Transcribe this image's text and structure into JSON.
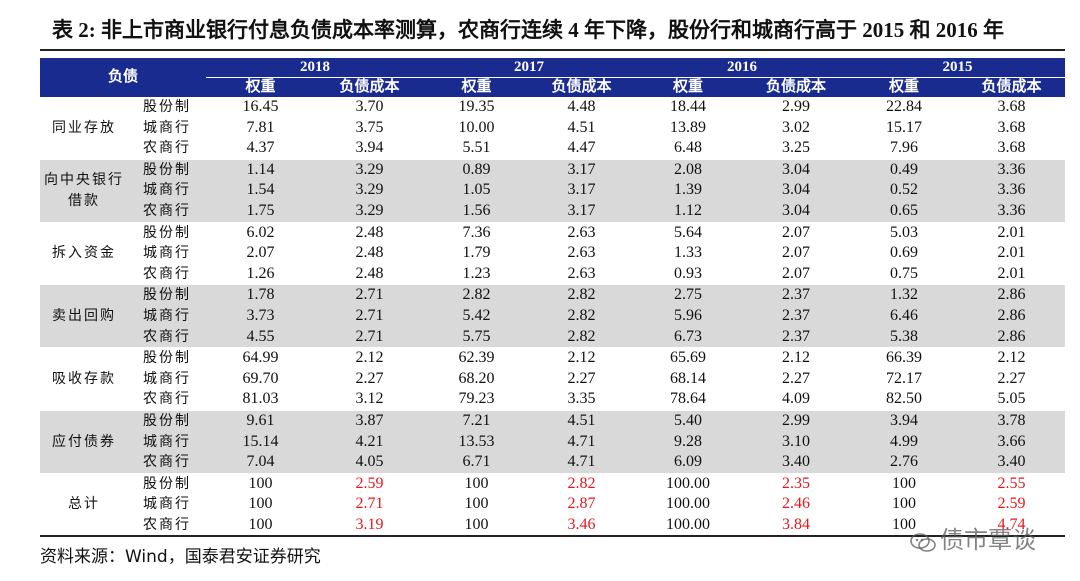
{
  "title": "表 2:  非上市商业银行付息负债成本率测算，农商行连续 4 年下降，股份行和城商行高于 2015 和 2016 年",
  "header": {
    "corner": "负债",
    "years": [
      "2018",
      "2017",
      "2016",
      "2015"
    ],
    "sub_weight": "权重",
    "sub_cost": "负债成本"
  },
  "groups": [
    {
      "name_lines": [
        "同业存放"
      ],
      "shaded": false,
      "rows": [
        {
          "type": "股份制",
          "cells": [
            "16.45",
            "3.70",
            "19.35",
            "4.48",
            "18.44",
            "2.99",
            "22.84",
            "3.68"
          ]
        },
        {
          "type": "城商行",
          "cells": [
            "7.81",
            "3.75",
            "10.00",
            "4.51",
            "13.89",
            "3.02",
            "15.17",
            "3.68"
          ]
        },
        {
          "type": "农商行",
          "cells": [
            "4.37",
            "3.94",
            "5.51",
            "4.47",
            "6.48",
            "3.25",
            "7.96",
            "3.68"
          ]
        }
      ]
    },
    {
      "name_lines": [
        "向中央银行",
        "借款"
      ],
      "shaded": true,
      "rows": [
        {
          "type": "股份制",
          "cells": [
            "1.14",
            "3.29",
            "0.89",
            "3.17",
            "2.08",
            "3.04",
            "0.49",
            "3.36"
          ]
        },
        {
          "type": "城商行",
          "cells": [
            "1.54",
            "3.29",
            "1.05",
            "3.17",
            "1.39",
            "3.04",
            "0.52",
            "3.36"
          ]
        },
        {
          "type": "农商行",
          "cells": [
            "1.75",
            "3.29",
            "1.56",
            "3.17",
            "1.12",
            "3.04",
            "0.65",
            "3.36"
          ]
        }
      ]
    },
    {
      "name_lines": [
        "拆入资金"
      ],
      "shaded": false,
      "rows": [
        {
          "type": "股份制",
          "cells": [
            "6.02",
            "2.48",
            "7.36",
            "2.63",
            "5.64",
            "2.07",
            "5.03",
            "2.01"
          ]
        },
        {
          "type": "城商行",
          "cells": [
            "2.07",
            "2.48",
            "1.79",
            "2.63",
            "1.33",
            "2.07",
            "0.69",
            "2.01"
          ]
        },
        {
          "type": "农商行",
          "cells": [
            "1.26",
            "2.48",
            "1.23",
            "2.63",
            "0.93",
            "2.07",
            "0.75",
            "2.01"
          ]
        }
      ]
    },
    {
      "name_lines": [
        "卖出回购"
      ],
      "shaded": true,
      "rows": [
        {
          "type": "股份制",
          "cells": [
            "1.78",
            "2.71",
            "2.82",
            "2.82",
            "2.75",
            "2.37",
            "1.32",
            "2.86"
          ]
        },
        {
          "type": "城商行",
          "cells": [
            "3.73",
            "2.71",
            "5.42",
            "2.82",
            "5.96",
            "2.37",
            "6.46",
            "2.86"
          ]
        },
        {
          "type": "农商行",
          "cells": [
            "4.55",
            "2.71",
            "5.75",
            "2.82",
            "6.73",
            "2.37",
            "5.38",
            "2.86"
          ]
        }
      ]
    },
    {
      "name_lines": [
        "吸收存款"
      ],
      "shaded": false,
      "rows": [
        {
          "type": "股份制",
          "cells": [
            "64.99",
            "2.12",
            "62.39",
            "2.12",
            "65.69",
            "2.12",
            "66.39",
            "2.12"
          ]
        },
        {
          "type": "城商行",
          "cells": [
            "69.70",
            "2.27",
            "68.20",
            "2.27",
            "68.14",
            "2.27",
            "72.17",
            "2.27"
          ]
        },
        {
          "type": "农商行",
          "cells": [
            "81.03",
            "3.12",
            "79.23",
            "3.35",
            "78.64",
            "4.09",
            "82.50",
            "5.05"
          ]
        }
      ]
    },
    {
      "name_lines": [
        "应付债券"
      ],
      "shaded": true,
      "rows": [
        {
          "type": "股份制",
          "cells": [
            "9.61",
            "3.87",
            "7.21",
            "4.51",
            "5.40",
            "2.99",
            "3.94",
            "3.78"
          ]
        },
        {
          "type": "城商行",
          "cells": [
            "15.14",
            "4.21",
            "13.53",
            "4.71",
            "9.28",
            "3.10",
            "4.99",
            "3.66"
          ]
        },
        {
          "type": "农商行",
          "cells": [
            "7.04",
            "4.05",
            "6.71",
            "4.71",
            "6.09",
            "3.40",
            "2.76",
            "3.40"
          ]
        }
      ]
    },
    {
      "name_lines": [
        "总计"
      ],
      "shaded": false,
      "highlight_cost": true,
      "rows": [
        {
          "type": "股份制",
          "cells": [
            "100",
            "2.59",
            "100",
            "2.82",
            "100.00",
            "2.35",
            "100",
            "2.55"
          ]
        },
        {
          "type": "城商行",
          "cells": [
            "100",
            "2.71",
            "100",
            "2.87",
            "100.00",
            "2.46",
            "100",
            "2.59"
          ]
        },
        {
          "type": "农商行",
          "cells": [
            "100",
            "3.19",
            "100",
            "3.46",
            "100.00",
            "3.84",
            "100",
            "4.74"
          ]
        }
      ]
    }
  ],
  "highlight_color": "#e8161b",
  "header_color": "#1a2b8f",
  "shade_color": "#d9d9d9",
  "source": "资料来源：Wind，国泰君安证券研究",
  "watermark": "债市覃谈",
  "watermark_icon": "wechat-icon"
}
